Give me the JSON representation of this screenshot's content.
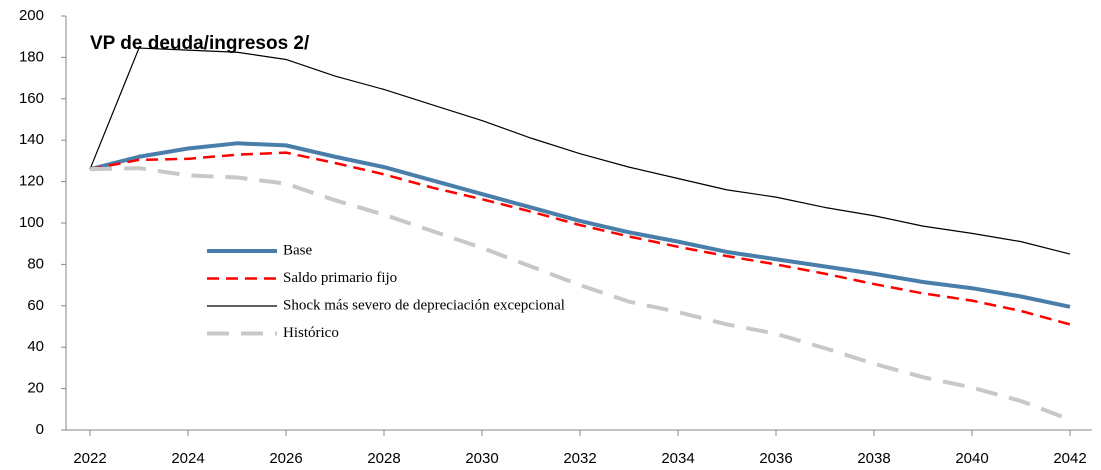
{
  "chart_data": {
    "type": "line",
    "title": "VP de deuda/ingresos 2/",
    "x": [
      2022,
      2023,
      2024,
      2025,
      2026,
      2027,
      2028,
      2029,
      2030,
      2031,
      2032,
      2033,
      2034,
      2035,
      2036,
      2037,
      2038,
      2039,
      2040,
      2041,
      2042
    ],
    "xlim": [
      2022,
      2042
    ],
    "xticks": [
      2022,
      2024,
      2026,
      2028,
      2030,
      2032,
      2034,
      2036,
      2038,
      2040,
      2042
    ],
    "ylim": [
      0,
      200
    ],
    "yticks": [
      0,
      20,
      40,
      60,
      80,
      100,
      120,
      140,
      160,
      180,
      200
    ],
    "grid": false,
    "series": [
      {
        "name": "Base",
        "color": "#4a7eaa",
        "width": 4,
        "dash": "none",
        "values": [
          126,
          132,
          136,
          138.5,
          137.5,
          132,
          127,
          120.5,
          114,
          107.5,
          101,
          95.5,
          91,
          86,
          82.5,
          79,
          75.5,
          71.5,
          68.5,
          64.5,
          59.5
        ]
      },
      {
        "name": "Saldo primario fijo",
        "color": "#ff0000",
        "width": 2.5,
        "dash": "12 7",
        "values": [
          126,
          130.5,
          131,
          133,
          134,
          129,
          123.5,
          117,
          111.5,
          105.5,
          99,
          93.5,
          88.5,
          84,
          80,
          75.5,
          70.5,
          66,
          62.5,
          57.5,
          51
        ]
      },
      {
        "name": "Shock más severo de depreciación excepcional",
        "color": "#000000",
        "width": 1.2,
        "dash": "none",
        "values": [
          126,
          184.5,
          183.5,
          182.5,
          179,
          171,
          164.5,
          157,
          149.5,
          141,
          133.5,
          127,
          121.5,
          116,
          112.5,
          107.5,
          103.5,
          98.5,
          95,
          91,
          85
        ]
      },
      {
        "name": "Histórico",
        "color": "#c8c8c8",
        "width": 4,
        "dash": "22 12",
        "values": [
          126,
          126.5,
          123,
          122,
          119,
          111,
          104,
          96,
          88,
          79,
          70,
          62,
          57,
          51,
          46.5,
          39.5,
          32,
          25.5,
          20.5,
          14,
          5
        ]
      }
    ]
  }
}
